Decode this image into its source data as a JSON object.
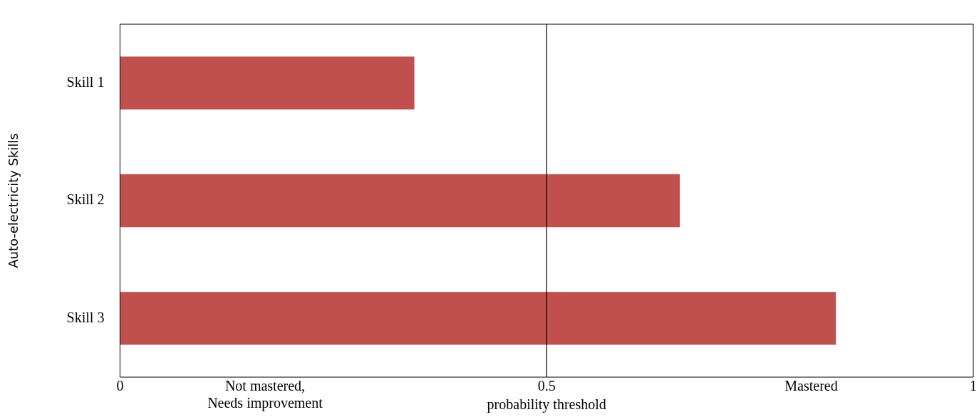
{
  "chart_data": {
    "type": "bar",
    "orientation": "horizontal",
    "ylabel": "Auto-electricity Skills",
    "categories": [
      "Skill 1",
      "Skill 2",
      "Skill 3"
    ],
    "values": [
      0.345,
      0.656,
      0.839
    ],
    "color": "#c0504d",
    "xlim": [
      0,
      1
    ],
    "xticks": [
      0,
      {
        "value": 0.17,
        "label": "Not mastered,\nNeeds improvement"
      },
      0.5,
      {
        "value": 0.81,
        "label": "Mastered"
      },
      1
    ],
    "ref_lines": [
      {
        "axis": "x",
        "value": 0.5,
        "label": "probability threshold",
        "color": "#000000"
      }
    ],
    "grid": false,
    "legend": false
  }
}
